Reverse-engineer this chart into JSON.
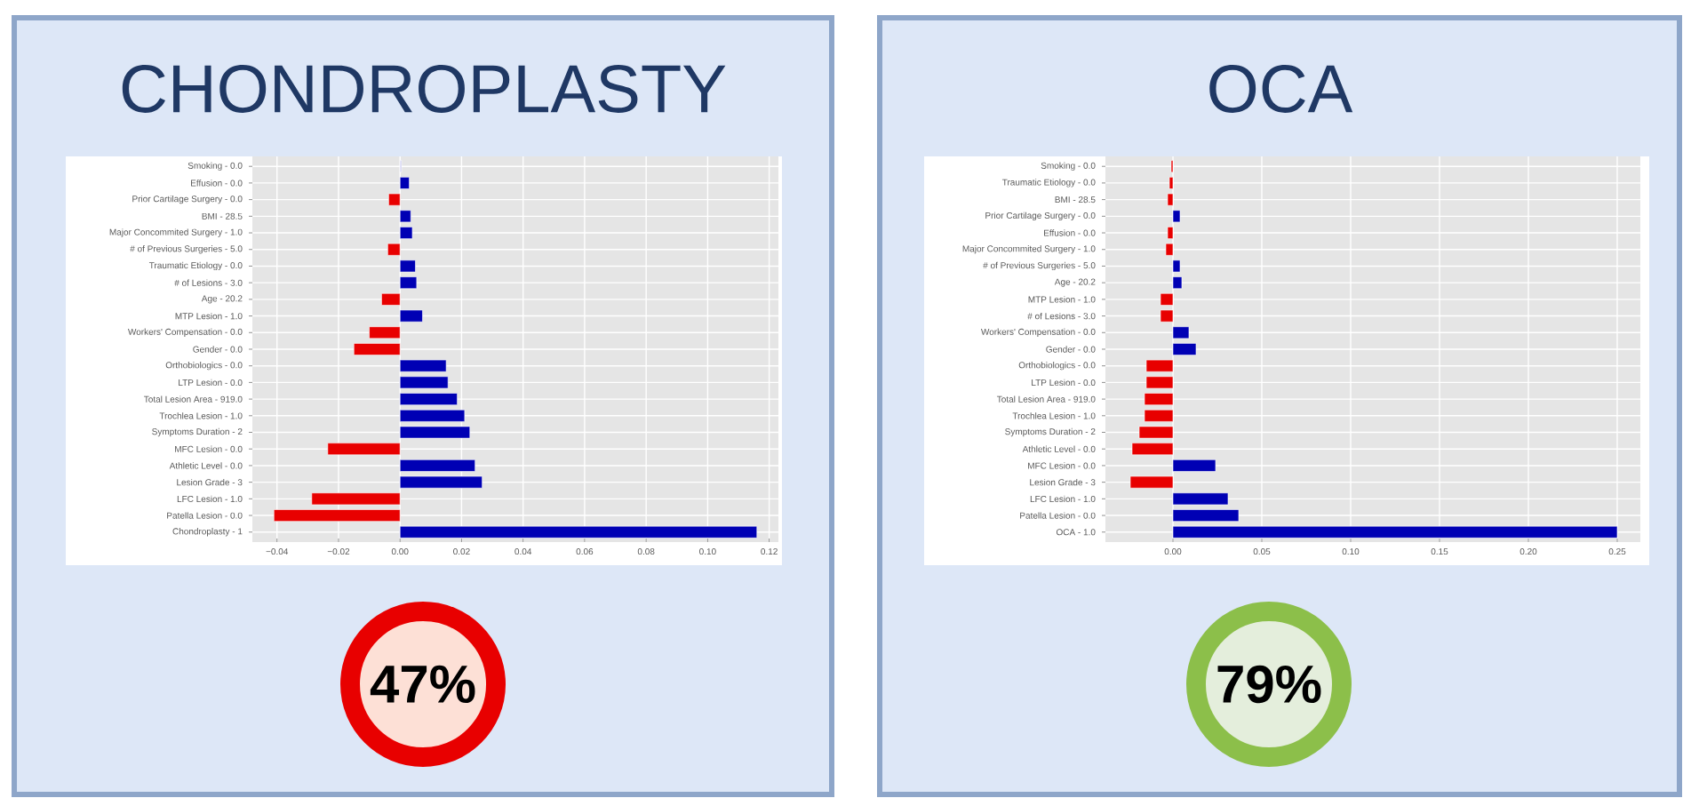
{
  "chart_data": [
    {
      "type": "bar",
      "orientation": "horizontal",
      "title": "CHONDROPLASTY",
      "annotations": [
        "47%"
      ],
      "grid": true,
      "categories": [
        "Smoking - 0.0",
        "Effusion - 0.0",
        "Prior Cartilage Surgery - 0.0",
        "BMI - 28.5",
        "Major Concommited Surgery - 1.0",
        "# of Previous Surgeries - 5.0",
        "Traumatic Etiology - 0.0",
        "# of Lesions - 3.0",
        "Age - 20.2",
        "MTP Lesion - 1.0",
        "Workers' Compensation - 0.0",
        "Gender - 0.0",
        "Orthobiologics - 0.0",
        "LTP Lesion - 0.0",
        "Total Lesion Area - 919.0",
        "Trochlea Lesion - 1.0",
        "Symptoms Duration - 2",
        "MFC Lesion - 0.0",
        "Athletic Level - 0.0",
        "Lesion Grade - 3",
        "LFC Lesion - 1.0",
        "Patella Lesion - 0.0",
        "Chondroplasty - 1"
      ],
      "values": [
        0.0005,
        0.003,
        -0.0037,
        0.0035,
        0.004,
        -0.004,
        0.005,
        0.0054,
        -0.006,
        0.0073,
        -0.01,
        -0.015,
        0.015,
        0.0156,
        0.0186,
        0.021,
        0.0227,
        -0.0235,
        0.0244,
        0.0267,
        -0.0287,
        -0.041,
        0.116
      ],
      "colors": [
        "#c8c8f0",
        "#0000b4",
        "#e80000",
        "#0000b4",
        "#0000b4",
        "#e80000",
        "#0000b4",
        "#0000b4",
        "#e80000",
        "#0000b4",
        "#e80000",
        "#e80000",
        "#0000b4",
        "#0000b4",
        "#0000b4",
        "#0000b4",
        "#0000b4",
        "#e80000",
        "#0000b4",
        "#0000b4",
        "#e80000",
        "#e80000",
        "#0000b4"
      ],
      "xlim": [
        -0.048,
        0.123
      ],
      "xticks": [
        {
          "value": -0.04,
          "label": "−0.04"
        },
        {
          "value": -0.02,
          "label": "−0.02"
        },
        {
          "value": 0,
          "label": "0.00"
        },
        {
          "value": 0.02,
          "label": "0.02"
        },
        {
          "value": 0.04,
          "label": "0.04"
        },
        {
          "value": 0.06,
          "label": "0.06"
        },
        {
          "value": 0.08,
          "label": "0.08"
        },
        {
          "value": 0.1,
          "label": "0.10"
        },
        {
          "value": 0.12,
          "label": "0.12"
        }
      ]
    },
    {
      "type": "bar",
      "orientation": "horizontal",
      "title": "OCA",
      "annotations": [
        "79%"
      ],
      "grid": true,
      "categories": [
        "Smoking - 0.0",
        "Traumatic Etiology - 0.0",
        "BMI - 28.5",
        "Prior Cartilage Surgery - 0.0",
        "Effusion - 0.0",
        "Major Concommited Surgery - 1.0",
        "# of Previous Surgeries - 5.0",
        "Age - 20.2",
        "MTP Lesion - 1.0",
        "# of Lesions - 3.0",
        "Workers' Compensation - 0.0",
        "Gender - 0.0",
        "Orthobiologics - 0.0",
        "LTP Lesion - 0.0",
        "Total Lesion Area - 919.0",
        "Trochlea Lesion - 1.0",
        "Symptoms Duration - 2",
        "Athletic Level - 0.0",
        "MFC Lesion - 0.0",
        "Lesion Grade - 3",
        "LFC Lesion - 1.0",
        "Patella Lesion - 0.0",
        "OCA - 1.0"
      ],
      "values": [
        -0.001,
        -0.002,
        -0.003,
        0.004,
        -0.003,
        -0.004,
        0.004,
        0.005,
        -0.007,
        -0.007,
        0.009,
        0.013,
        -0.015,
        -0.015,
        -0.016,
        -0.016,
        -0.019,
        -0.023,
        0.024,
        -0.024,
        0.031,
        0.037,
        0.25
      ],
      "colors": [
        "#e80000",
        "#e80000",
        "#e80000",
        "#0000b4",
        "#e80000",
        "#e80000",
        "#0000b4",
        "#0000b4",
        "#e80000",
        "#e80000",
        "#0000b4",
        "#0000b4",
        "#e80000",
        "#e80000",
        "#e80000",
        "#e80000",
        "#e80000",
        "#e80000",
        "#0000b4",
        "#e80000",
        "#0000b4",
        "#0000b4",
        "#0000b4"
      ],
      "xlim": [
        -0.038,
        0.263
      ],
      "xticks": [
        {
          "value": 0,
          "label": "0.00"
        },
        {
          "value": 0.05,
          "label": "0.05"
        },
        {
          "value": 0.1,
          "label": "0.10"
        },
        {
          "value": 0.15,
          "label": "0.15"
        },
        {
          "value": 0.2,
          "label": "0.20"
        },
        {
          "value": 0.25,
          "label": "0.25"
        }
      ]
    }
  ]
}
